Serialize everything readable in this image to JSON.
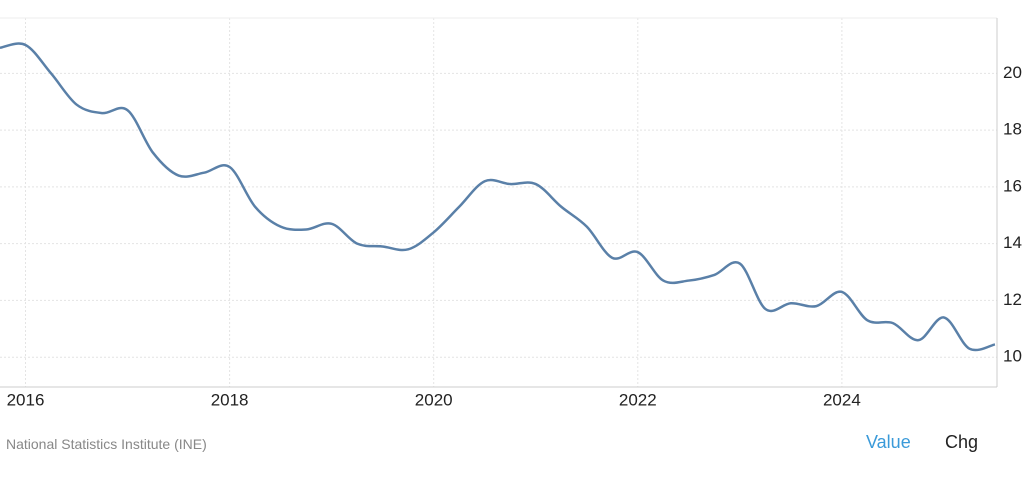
{
  "chart_data": {
    "type": "line",
    "x": [
      2015.75,
      2016.0,
      2016.25,
      2016.5,
      2016.75,
      2017.0,
      2017.25,
      2017.5,
      2017.75,
      2018.0,
      2018.25,
      2018.5,
      2018.75,
      2019.0,
      2019.25,
      2019.5,
      2019.75,
      2020.0,
      2020.25,
      2020.5,
      2020.75,
      2021.0,
      2021.25,
      2021.5,
      2021.75,
      2022.0,
      2022.25,
      2022.5,
      2022.75,
      2023.0,
      2023.25,
      2023.5,
      2023.75,
      2024.0,
      2024.25,
      2024.5,
      2024.75,
      2025.0,
      2025.25,
      2025.5
    ],
    "series": [
      {
        "color": "#5a80a8",
        "values": [
          20.9,
          21.0,
          20.0,
          18.9,
          18.6,
          18.7,
          17.2,
          16.4,
          16.5,
          16.7,
          15.3,
          14.6,
          14.5,
          14.7,
          14.0,
          13.9,
          13.8,
          14.4,
          15.3,
          16.2,
          16.1,
          16.1,
          15.3,
          14.6,
          13.5,
          13.7,
          12.7,
          12.7,
          12.9,
          13.3,
          11.7,
          11.9,
          11.8,
          12.3,
          11.3,
          11.2,
          10.6,
          11.4,
          10.3,
          10.45
        ]
      }
    ],
    "xlim": [
      2015.75,
      2025.52
    ],
    "xticks": [
      2016,
      2018,
      2020,
      2022,
      2024
    ],
    "ylim": [
      8.95,
      21.95
    ],
    "yticks": [
      10,
      12,
      14,
      16,
      18,
      20
    ],
    "grid": true
  },
  "footer": {
    "source": "National Statistics Institute (INE)",
    "tabs": [
      "Value",
      "Chg"
    ]
  }
}
